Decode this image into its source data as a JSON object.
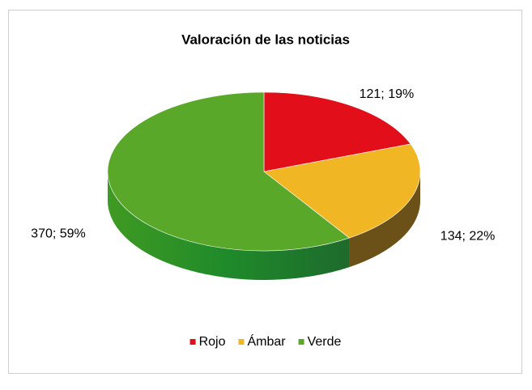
{
  "chart_data": {
    "type": "pie3d",
    "title": "Valoración de las noticias",
    "categories": [
      "Rojo",
      "Ámbar",
      "Verde"
    ],
    "values": [
      121,
      134,
      370
    ],
    "value_labels": [
      "121; 19%",
      "134; 22%",
      "370; 59%"
    ],
    "colors": [
      "#e20f1b",
      "#f0b623",
      "#5aa82a"
    ],
    "side_colors": [
      "#8a0a10",
      "#6b5017",
      "url(#greenSide)"
    ],
    "legend": "bottom"
  }
}
